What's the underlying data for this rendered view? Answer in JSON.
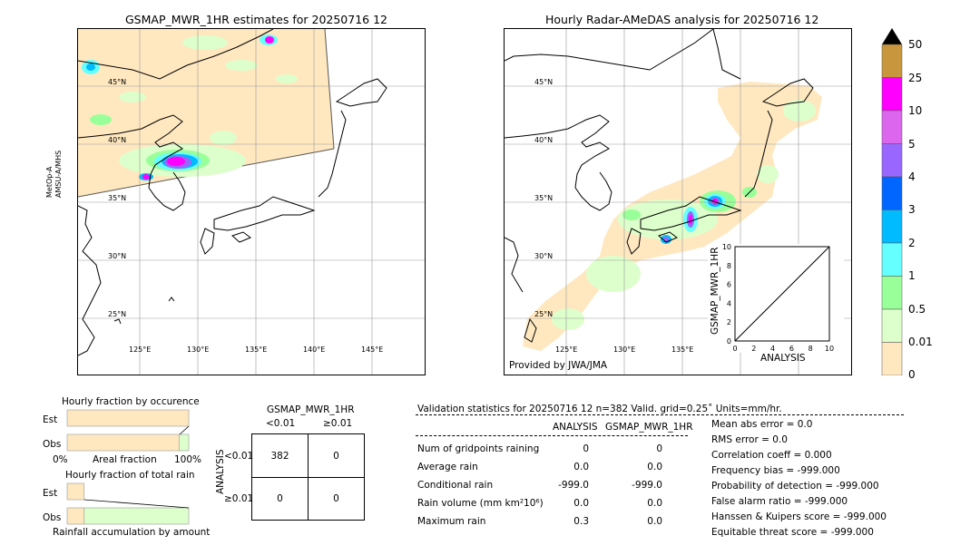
{
  "left_map": {
    "title": "GSMAP_MWR_1HR estimates for 20250716 12",
    "side_label_1": "MetOp-A",
    "side_label_2": "AMSU-A/MHS",
    "lat_labels": [
      "45°N",
      "40°N",
      "35°N",
      "30°N",
      "25°N"
    ],
    "lon_labels": [
      "125°E",
      "130°E",
      "135°E",
      "140°E",
      "145°E"
    ]
  },
  "right_map": {
    "title": "Hourly Radar-AMeDAS analysis for 20250716 12",
    "lat_labels": [
      "45°N",
      "40°N",
      "35°N",
      "30°N",
      "25°N"
    ],
    "lon_labels": [
      "125°E",
      "130°E",
      "135°E"
    ],
    "credit": "Provided by JWA/JMA"
  },
  "colorbar": {
    "labels": [
      "50",
      "25",
      "10",
      "5",
      "4",
      "3",
      "2",
      "1",
      "0.5",
      "0.01",
      "0"
    ],
    "colors": [
      "#c8963c",
      "#ff00ff",
      "#dd66ee",
      "#9966ff",
      "#0066ff",
      "#00bbff",
      "#66ffff",
      "#99ff99",
      "#ddffcc",
      "#ffe8c0"
    ],
    "extend_color": "#000000"
  },
  "chart_data": [
    {
      "type": "scatter",
      "title": "",
      "xlabel": "ANALYSIS",
      "ylabel": "GSMAP_MWR_1HR",
      "xlim": [
        0,
        10
      ],
      "ylim": [
        0,
        10
      ],
      "x_ticks": [
        "0",
        "2",
        "4",
        "6",
        "8",
        "10"
      ],
      "y_ticks": [
        "0",
        "2",
        "4",
        "6",
        "8",
        "10"
      ],
      "series": [
        {
          "x": [
            0,
            10
          ],
          "y": [
            0,
            10
          ]
        }
      ]
    },
    {
      "type": "bar",
      "title": "Hourly fraction by occurence",
      "categories": [
        "Est",
        "Obs"
      ],
      "values": [
        1.0,
        1.0
      ],
      "obs_rain_fraction": 0.08,
      "xlabel": "Areal fraction",
      "x_tick_labels": [
        "0%",
        "100%"
      ]
    },
    {
      "type": "bar",
      "title": "Hourly fraction of total rain",
      "categories": [
        "Est",
        "Obs"
      ],
      "est_fraction": 0.14,
      "obs_fraction": 1.0,
      "xlabel": "Rainfall accumulation by amount"
    }
  ],
  "contingency": {
    "title": "GSMAP_MWR_1HR",
    "col_headers": [
      "<0.01",
      "≥0.01"
    ],
    "row_axis_label": "ANALYSIS",
    "row_headers": [
      "<0.01",
      "≥0.01"
    ],
    "cells": [
      [
        "382",
        "0"
      ],
      [
        "0",
        "0"
      ]
    ]
  },
  "validation": {
    "header": "Validation statistics for 20250716 12  n=382 Valid. grid=0.25˚ Units=mm/hr.",
    "col_analysis": "ANALYSIS",
    "col_gsmap": "GSMAP_MWR_1HR",
    "rows": [
      {
        "label": "Num of gridpoints raining",
        "analysis": "0",
        "gsmap": "0"
      },
      {
        "label": "Average rain",
        "analysis": "0.0",
        "gsmap": "0.0"
      },
      {
        "label": "Conditional rain",
        "analysis": "-999.0",
        "gsmap": "-999.0"
      },
      {
        "label": "Rain volume (mm km²10⁶)",
        "analysis": "0.0",
        "gsmap": "0.0"
      },
      {
        "label": "Maximum rain",
        "analysis": "0.3",
        "gsmap": "0.0"
      }
    ],
    "scores": [
      "Mean abs error =    0.0",
      "RMS error =    0.0",
      "Correlation coeff =  0.000",
      "Frequency bias = -999.000",
      "Probability of detection = -999.000",
      "False alarm ratio = -999.000",
      "Hanssen & Kuipers score = -999.000",
      "Equitable threat score = -999.000"
    ]
  }
}
